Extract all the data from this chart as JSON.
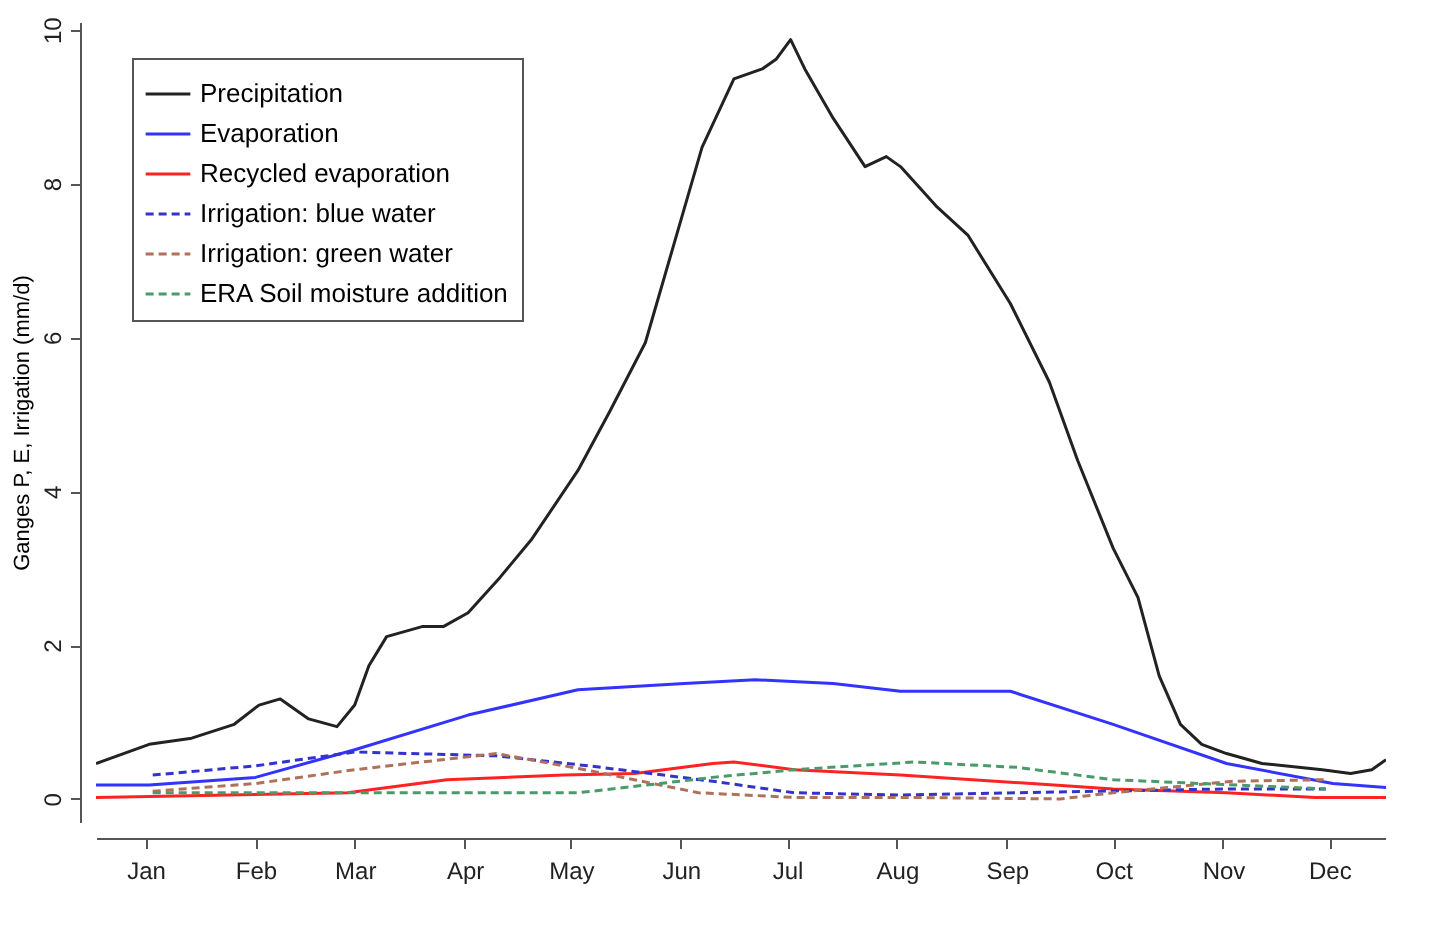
{
  "chart_data": {
    "type": "line",
    "ylabel": "Ganges P, E, Irrigation (mm/d)",
    "xlim": [
      "--01-01",
      "--12-31"
    ],
    "xticks": [
      {
        "value": "--01-15",
        "label": "Jan"
      },
      {
        "value": "--02-15",
        "label": "Feb"
      },
      {
        "value": "--03-15",
        "label": "Mar"
      },
      {
        "value": "--04-15",
        "label": "Apr"
      },
      {
        "value": "--05-15",
        "label": "May"
      },
      {
        "value": "--06-15",
        "label": "Jun"
      },
      {
        "value": "--07-15",
        "label": "Jul"
      },
      {
        "value": "--08-15",
        "label": "Aug"
      },
      {
        "value": "--09-15",
        "label": "Sep"
      },
      {
        "value": "--10-15",
        "label": "Oct"
      },
      {
        "value": "--11-15",
        "label": "Nov"
      },
      {
        "value": "--12-15",
        "label": "Dec"
      }
    ],
    "ylim": [
      -0.3,
      10.1
    ],
    "yticks": [
      0,
      2,
      4,
      6,
      8,
      10
    ],
    "grid": false,
    "legend": "top left",
    "series": [
      {
        "name": "Precipitation",
        "color": "#222222",
        "line_style": "solid",
        "x": [
          "--01-01",
          "--01-16",
          "--01-28",
          "--02-09",
          "--02-16",
          "--02-22",
          "--03-02",
          "--03-10",
          "--03-15",
          "--03-19",
          "--03-24",
          "--04-03",
          "--04-09",
          "--04-16",
          "--04-25",
          "--05-04",
          "--05-17",
          "--05-26",
          "--06-05",
          "--06-13",
          "--06-21",
          "--06-30",
          "--07-08",
          "--07-12",
          "--07-16",
          "--07-20",
          "--07-28",
          "--08-06",
          "--08-12",
          "--08-16",
          "--08-26",
          "--09-04",
          "--09-16",
          "--09-27",
          "--10-05",
          "--10-15",
          "--10-22",
          "--10-28",
          "--11-03",
          "--11-09",
          "--11-16",
          "--11-26",
          "--12-07",
          "--12-13",
          "--12-21",
          "--12-27",
          "--12-31"
        ],
        "values": [
          0.46,
          0.71,
          0.79,
          0.97,
          1.22,
          1.3,
          1.04,
          0.94,
          1.22,
          1.73,
          2.11,
          2.24,
          2.24,
          2.42,
          2.88,
          3.38,
          4.27,
          5.04,
          5.93,
          7.2,
          8.47,
          9.36,
          9.49,
          9.62,
          9.87,
          9.49,
          8.85,
          8.22,
          8.35,
          8.22,
          7.71,
          7.33,
          6.44,
          5.42,
          4.4,
          3.26,
          2.62,
          1.6,
          0.97,
          0.71,
          0.59,
          0.46,
          0.41,
          0.38,
          0.33,
          0.38,
          0.51
        ]
      },
      {
        "name": "Evaporation",
        "color": "#3333ff",
        "line_style": "solid",
        "x": [
          "--01-01",
          "--01-16",
          "--02-15",
          "--03-15",
          "--04-16",
          "--05-17",
          "--06-16",
          "--07-06",
          "--07-28",
          "--08-16",
          "--09-16",
          "--10-15",
          "--11-16",
          "--12-16",
          "--12-31"
        ],
        "values": [
          0.18,
          0.18,
          0.28,
          0.64,
          1.09,
          1.42,
          1.5,
          1.55,
          1.5,
          1.4,
          1.4,
          0.97,
          0.46,
          0.2,
          0.15
        ]
      },
      {
        "name": "Recycled evaporation",
        "color": "#ff2222",
        "line_style": "solid",
        "x": [
          "--01-01",
          "--03-13",
          "--04-10",
          "--05-13",
          "--06-02",
          "--06-24",
          "--06-30",
          "--07-17",
          "--08-16",
          "--09-22",
          "--10-15",
          "--11-16",
          "--12-11",
          "--12-31"
        ],
        "values": [
          0.02,
          0.08,
          0.25,
          0.31,
          0.33,
          0.46,
          0.48,
          0.38,
          0.31,
          0.2,
          0.13,
          0.08,
          0.02,
          0.02
        ]
      },
      {
        "name": "Irrigation: blue water",
        "color": "#3333cc",
        "line_style": "dashed",
        "x": [
          "--01-17",
          "--02-15",
          "--03-15",
          "--04-24",
          "--05-20",
          "--06-24",
          "--07-17",
          "--08-16",
          "--10-11",
          "--11-16",
          "--12-14"
        ],
        "values": [
          0.31,
          0.43,
          0.61,
          0.56,
          0.43,
          0.23,
          0.08,
          0.05,
          0.1,
          0.13,
          0.13
        ]
      },
      {
        "name": "Irrigation: green water",
        "color": "#b0705a",
        "line_style": "dashed",
        "x": [
          "--01-17",
          "--02-15",
          "--03-15",
          "--04-24",
          "--05-19",
          "--06-20",
          "--07-17",
          "--08-16",
          "--09-30",
          "--10-15",
          "--11-18",
          "--12-14"
        ],
        "values": [
          0.1,
          0.2,
          0.38,
          0.59,
          0.38,
          0.08,
          0.02,
          0.02,
          0.0,
          0.08,
          0.23,
          0.25
        ]
      },
      {
        "name": "ERA Soil moisture addition",
        "color": "#4a9a6a",
        "line_style": "dashed",
        "x": [
          "--01-17",
          "--03-13",
          "--05-17",
          "--06-09",
          "--06-24",
          "--07-17",
          "--08-20",
          "--09-18",
          "--10-15",
          "--12-14"
        ],
        "values": [
          0.08,
          0.08,
          0.08,
          0.2,
          0.28,
          0.38,
          0.48,
          0.41,
          0.25,
          0.13
        ]
      }
    ]
  }
}
